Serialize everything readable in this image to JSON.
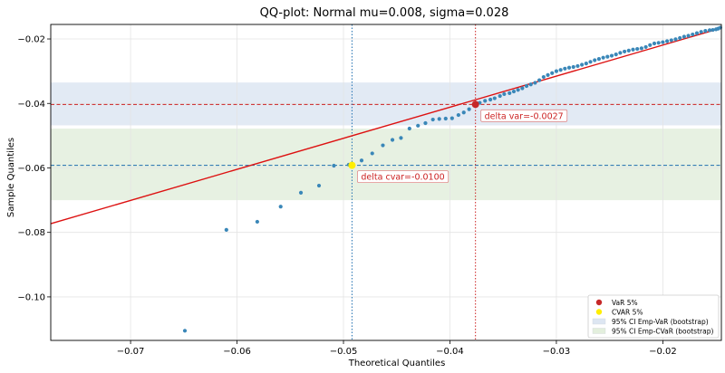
{
  "chart_data": {
    "type": "scatter",
    "title": "QQ-plot: Normal mu=0.008, sigma=0.028",
    "xlabel": "Theoretical Quantiles",
    "ylabel": "Sample Quantiles",
    "xlim": [
      -0.0775,
      -0.0145
    ],
    "ylim": [
      -0.1135,
      -0.0155
    ],
    "xticks": [
      -0.07,
      -0.06,
      -0.05,
      -0.04,
      -0.03,
      -0.02
    ],
    "xtick_labels": [
      "−0.07",
      "−0.06",
      "−0.05",
      "−0.04",
      "−0.03",
      "−0.02"
    ],
    "yticks": [
      -0.02,
      -0.04,
      -0.06,
      -0.08,
      -0.1
    ],
    "ytick_labels": [
      "−0.02",
      "−0.04",
      "−0.06",
      "−0.08",
      "−0.10"
    ],
    "grid": true,
    "fit_line": {
      "x": [
        -0.0775,
        -0.0145
      ],
      "y": [
        -0.0773,
        -0.0166
      ],
      "color": "#dd1111"
    },
    "scatter_color": "#3a87b8",
    "scatter_points": [
      [
        -0.0649,
        -0.1105
      ],
      [
        -0.061,
        -0.0792
      ],
      [
        -0.0581,
        -0.0767
      ],
      [
        -0.0559,
        -0.072
      ],
      [
        -0.054,
        -0.0677
      ],
      [
        -0.0523,
        -0.0655
      ],
      [
        -0.0509,
        -0.0593
      ],
      [
        -0.0495,
        -0.059
      ],
      [
        -0.0483,
        -0.0577
      ],
      [
        -0.0473,
        -0.0555
      ],
      [
        -0.0463,
        -0.053
      ],
      [
        -0.0454,
        -0.0513
      ],
      [
        -0.0446,
        -0.0507
      ],
      [
        -0.0438,
        -0.0478
      ],
      [
        -0.043,
        -0.0469
      ],
      [
        -0.0423,
        -0.0461
      ],
      [
        -0.0416,
        -0.045
      ],
      [
        -0.041,
        -0.0448
      ],
      [
        -0.0404,
        -0.0447
      ],
      [
        -0.0398,
        -0.0446
      ],
      [
        -0.0392,
        -0.0436
      ],
      [
        -0.0387,
        -0.0428
      ],
      [
        -0.0382,
        -0.0418
      ],
      [
        -0.0377,
        -0.0406
      ],
      [
        -0.0372,
        -0.0398
      ],
      [
        -0.0367,
        -0.0392
      ],
      [
        -0.0362,
        -0.0388
      ],
      [
        -0.0358,
        -0.0384
      ],
      [
        -0.0353,
        -0.0377
      ],
      [
        -0.0349,
        -0.0371
      ],
      [
        -0.0344,
        -0.0368
      ],
      [
        -0.034,
        -0.0363
      ],
      [
        -0.0336,
        -0.0358
      ],
      [
        -0.0332,
        -0.0353
      ],
      [
        -0.0328,
        -0.0346
      ],
      [
        -0.0324,
        -0.0341
      ],
      [
        -0.032,
        -0.0336
      ],
      [
        -0.0316,
        -0.0328
      ],
      [
        -0.0312,
        -0.0318
      ],
      [
        -0.0308,
        -0.0312
      ],
      [
        -0.0304,
        -0.0306
      ],
      [
        -0.03,
        -0.03
      ],
      [
        -0.0296,
        -0.0296
      ],
      [
        -0.0292,
        -0.0292
      ],
      [
        -0.0288,
        -0.0289
      ],
      [
        -0.0284,
        -0.0287
      ],
      [
        -0.028,
        -0.0284
      ],
      [
        -0.0276,
        -0.028
      ],
      [
        -0.0272,
        -0.0276
      ],
      [
        -0.0268,
        -0.0271
      ],
      [
        -0.0264,
        -0.0266
      ],
      [
        -0.026,
        -0.0262
      ],
      [
        -0.0256,
        -0.0258
      ],
      [
        -0.0252,
        -0.0255
      ],
      [
        -0.0248,
        -0.0252
      ],
      [
        -0.0244,
        -0.0248
      ],
      [
        -0.024,
        -0.0243
      ],
      [
        -0.0236,
        -0.0239
      ],
      [
        -0.0232,
        -0.0236
      ],
      [
        -0.0228,
        -0.0233
      ],
      [
        -0.0224,
        -0.0231
      ],
      [
        -0.022,
        -0.0229
      ],
      [
        -0.0216,
        -0.0225
      ],
      [
        -0.0212,
        -0.0219
      ],
      [
        -0.0208,
        -0.0214
      ],
      [
        -0.0204,
        -0.0212
      ],
      [
        -0.02,
        -0.021
      ],
      [
        -0.0196,
        -0.0207
      ],
      [
        -0.0192,
        -0.0204
      ],
      [
        -0.0188,
        -0.0201
      ],
      [
        -0.0184,
        -0.0197
      ],
      [
        -0.018,
        -0.0193
      ],
      [
        -0.0176,
        -0.019
      ],
      [
        -0.0172,
        -0.0186
      ],
      [
        -0.0168,
        -0.0182
      ],
      [
        -0.0164,
        -0.0178
      ],
      [
        -0.016,
        -0.0175
      ],
      [
        -0.0156,
        -0.0173
      ],
      [
        -0.0153,
        -0.0172
      ],
      [
        -0.015,
        -0.017
      ],
      [
        -0.0148,
        -0.0168
      ],
      [
        -0.0146,
        -0.0165
      ]
    ],
    "var": {
      "x": -0.0376,
      "y": -0.0403,
      "color": "#c62828",
      "label": "VaR 5%",
      "annotation": "delta var=-0.0027"
    },
    "cvar": {
      "x": -0.0492,
      "y": -0.0592,
      "color": "#ffee00",
      "label": "CVAR 5%",
      "annotation": "delta cvar=-0.0100"
    },
    "bands": [
      {
        "label": "95% CI Emp-VaR (bootstrap)",
        "y0": -0.0468,
        "y1": -0.0335,
        "color": "#dde6f2"
      },
      {
        "label": "95% CI Emp-CVaR (bootstrap)",
        "y0": -0.07,
        "y1": -0.0478,
        "color": "#e3efdd"
      }
    ],
    "legend_position": "lower-right"
  }
}
